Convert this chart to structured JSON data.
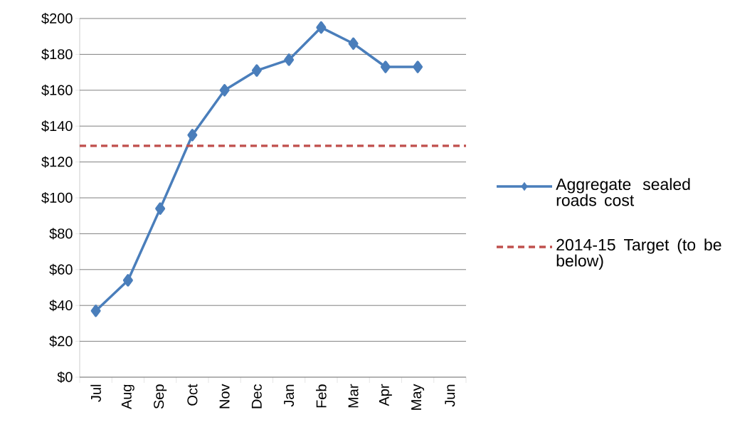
{
  "chart_data": {
    "type": "line",
    "categories": [
      "Jul",
      "Aug",
      "Sep",
      "Oct",
      "Nov",
      "Dec",
      "Jan",
      "Feb",
      "Mar",
      "Apr",
      "May",
      "Jun"
    ],
    "series": [
      {
        "name": "Aggregate sealed roads cost",
        "color": "#4a7ebb",
        "values": [
          37,
          54,
          94,
          135,
          160,
          171,
          177,
          195,
          186,
          173,
          173,
          null
        ]
      }
    ],
    "ref_lines": [
      {
        "axis": "y",
        "value": 129,
        "label": "2014-15 Target (to be below)",
        "color": "#c0504d",
        "line_style": "dashed"
      }
    ],
    "ylim": [
      0,
      200
    ],
    "yticks": [
      {
        "value": 0,
        "label": "$0"
      },
      {
        "value": 20,
        "label": "$20"
      },
      {
        "value": 40,
        "label": "$40"
      },
      {
        "value": 60,
        "label": "$60"
      },
      {
        "value": 80,
        "label": "$80"
      },
      {
        "value": 100,
        "label": "$100"
      },
      {
        "value": 120,
        "label": "$120"
      },
      {
        "value": 140,
        "label": "$140"
      },
      {
        "value": 160,
        "label": "$160"
      },
      {
        "value": 180,
        "label": "$180"
      },
      {
        "value": 200,
        "label": "$200"
      }
    ],
    "grid": "y",
    "legend": "right",
    "marker": "diamond",
    "line_style": "solid"
  }
}
